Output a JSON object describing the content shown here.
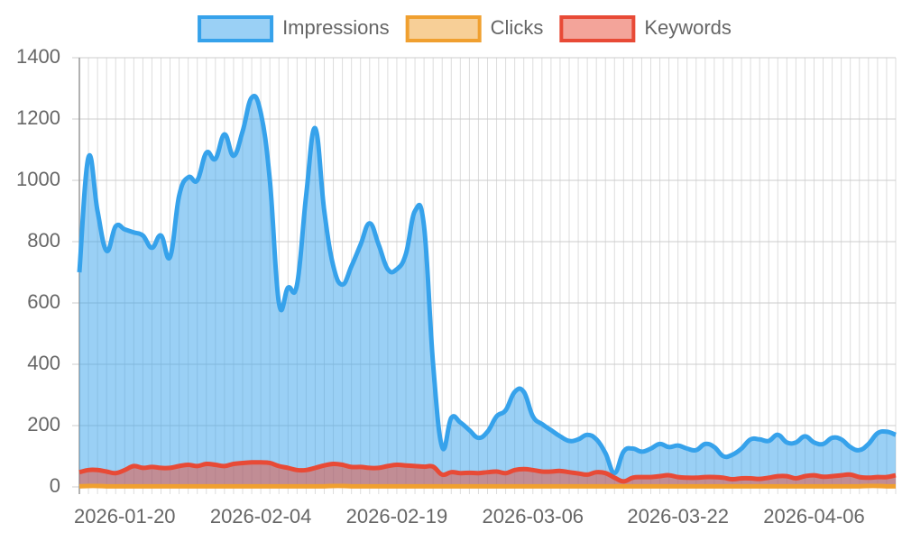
{
  "chart_data": {
    "type": "line",
    "categories": [
      null,
      null,
      null,
      null,
      null,
      "2026-01-20",
      null,
      null,
      null,
      null,
      null,
      null,
      null,
      null,
      null,
      null,
      null,
      null,
      null,
      null,
      "2026-02-04",
      null,
      null,
      null,
      null,
      null,
      null,
      null,
      null,
      null,
      null,
      null,
      null,
      null,
      null,
      "2026-02-19",
      null,
      null,
      null,
      null,
      null,
      null,
      null,
      null,
      null,
      null,
      null,
      null,
      null,
      null,
      "2026-03-06",
      null,
      null,
      null,
      null,
      null,
      null,
      null,
      null,
      null,
      null,
      null,
      null,
      null,
      null,
      null,
      "2026-03-22",
      null,
      null,
      null,
      null,
      null,
      null,
      null,
      null,
      null,
      null,
      null,
      null,
      null,
      null,
      "2026-04-06",
      null,
      null,
      null,
      null,
      null,
      null,
      null,
      null,
      null
    ],
    "series": [
      {
        "name": "Impressions",
        "color": "#36a2eb",
        "fill": "rgba(54,162,235,0.5)",
        "values": [
          700,
          1075,
          900,
          770,
          850,
          840,
          830,
          820,
          780,
          820,
          750,
          950,
          1010,
          1000,
          1090,
          1070,
          1150,
          1080,
          1160,
          1270,
          1220,
          1000,
          600,
          650,
          660,
          950,
          1170,
          900,
          720,
          660,
          720,
          790,
          860,
          790,
          710,
          710,
          760,
          900,
          850,
          400,
          130,
          225,
          210,
          185,
          160,
          180,
          230,
          250,
          310,
          310,
          230,
          205,
          185,
          165,
          150,
          155,
          170,
          155,
          110,
          45,
          115,
          125,
          115,
          125,
          140,
          130,
          135,
          125,
          120,
          140,
          130,
          100,
          105,
          125,
          155,
          155,
          150,
          170,
          145,
          145,
          165,
          145,
          140,
          160,
          155,
          130,
          120,
          140,
          175,
          180,
          170
        ]
      },
      {
        "name": "Clicks",
        "color": "#f0a030",
        "fill": "rgba(240,160,48,0.5)",
        "values": [
          2,
          3,
          3,
          2,
          2,
          2,
          2,
          2,
          2,
          2,
          2,
          2,
          2,
          2,
          2,
          2,
          2,
          2,
          2,
          2,
          2,
          2,
          2,
          2,
          2,
          2,
          2,
          2,
          3,
          3,
          2,
          2,
          2,
          2,
          2,
          2,
          2,
          2,
          2,
          2,
          2,
          2,
          2,
          2,
          2,
          2,
          2,
          2,
          2,
          2,
          2,
          2,
          2,
          2,
          2,
          2,
          2,
          2,
          2,
          2,
          2,
          2,
          2,
          2,
          2,
          2,
          2,
          2,
          2,
          2,
          2,
          2,
          2,
          2,
          2,
          2,
          2,
          2,
          2,
          2,
          2,
          2,
          2,
          2,
          2,
          2,
          2,
          3,
          3,
          2,
          2
        ]
      },
      {
        "name": "Keywords",
        "color": "#e84a36",
        "fill": "rgba(232,74,54,0.5)",
        "values": [
          48,
          55,
          55,
          50,
          45,
          55,
          68,
          62,
          65,
          62,
          62,
          68,
          72,
          68,
          75,
          72,
          68,
          75,
          78,
          80,
          80,
          78,
          68,
          62,
          55,
          55,
          62,
          70,
          75,
          72,
          65,
          65,
          62,
          62,
          68,
          72,
          70,
          68,
          66,
          66,
          40,
          48,
          45,
          46,
          45,
          48,
          50,
          45,
          55,
          58,
          55,
          50,
          50,
          52,
          48,
          44,
          40,
          48,
          45,
          30,
          18,
          30,
          32,
          32,
          35,
          38,
          32,
          30,
          30,
          32,
          32,
          30,
          25,
          28,
          28,
          26,
          30,
          35,
          35,
          28,
          35,
          38,
          33,
          35,
          38,
          40,
          32,
          30,
          32,
          32,
          38
        ]
      }
    ],
    "ylim": [
      0,
      1400
    ],
    "yticks": [
      0,
      200,
      400,
      600,
      800,
      1000,
      1200,
      1400
    ],
    "grid": true
  }
}
